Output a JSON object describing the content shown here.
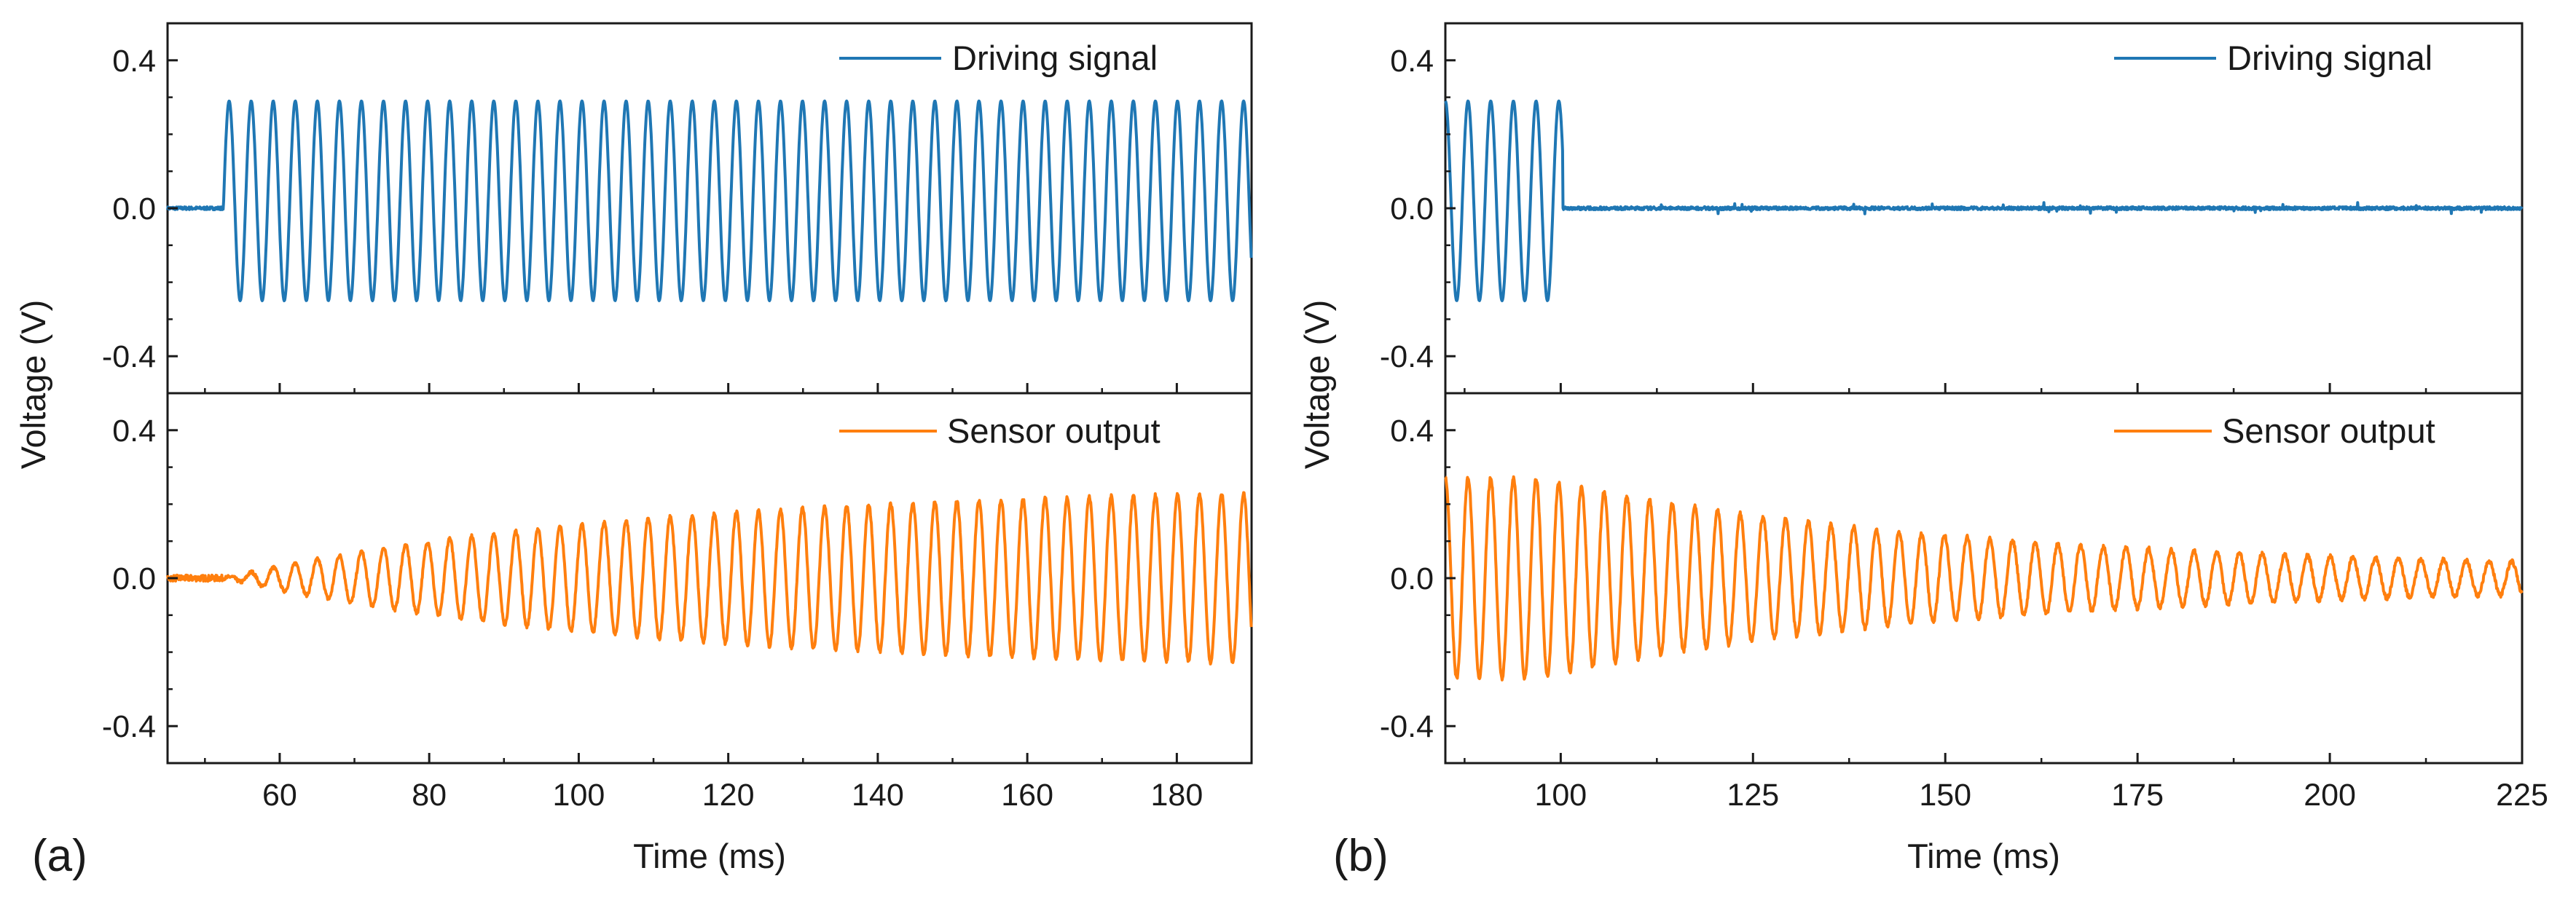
{
  "figure": {
    "panel_labels": [
      "(a)",
      "(b)"
    ],
    "colors": {
      "driving": "#1f77b4",
      "sensor": "#ff7f0e",
      "axis": "#1a1a1a"
    }
  },
  "chart_data": [
    {
      "type": "line",
      "panel": "(a)",
      "xlabel": "Time (ms)",
      "ylabel": "Voltage (V)",
      "xlim": [
        45,
        190
      ],
      "xticks": [
        60,
        80,
        100,
        120,
        140,
        160,
        180
      ],
      "xtick_labels": [
        "60",
        "80",
        "100",
        "120",
        "140",
        "160",
        "180"
      ],
      "subplots": [
        {
          "name": "top",
          "ylim": [
            -0.5,
            0.5
          ],
          "yticks": [
            0.4,
            0.0,
            -0.4
          ],
          "ytick_labels": [
            "0.4",
            "0.0",
            "-0.4"
          ],
          "series": [
            {
              "name": "Driving signal",
              "color": "#1f77b4",
              "legend_position": "top-right",
              "model": {
                "kind": "driving-on",
                "t_on": 52.5,
                "t_off": null,
                "period_ms": 2.95,
                "amplitude_pos": 0.29,
                "amplitude_neg": -0.25,
                "baseline_noise": 0.004
              }
            }
          ]
        },
        {
          "name": "bottom",
          "ylim": [
            -0.5,
            0.5
          ],
          "yticks": [
            0.4,
            0.0,
            -0.4
          ],
          "ytick_labels": [
            "0.4",
            "0.0",
            "-0.4"
          ],
          "series": [
            {
              "name": "Sensor output",
              "color": "#ff7f0e",
              "legend_position": "top-right",
              "model": {
                "kind": "rise",
                "t_on": 52.5,
                "period_ms": 2.95,
                "amplitude_max": 0.25,
                "tau_ms": 55,
                "noise": 0.012
              }
            }
          ]
        }
      ]
    },
    {
      "type": "line",
      "panel": "(b)",
      "xlabel": "Time (ms)",
      "ylabel": "Voltage (V)",
      "xlim": [
        85,
        225
      ],
      "xticks": [
        100,
        125,
        150,
        175,
        200,
        225
      ],
      "xtick_labels": [
        "100",
        "125",
        "150",
        "175",
        "200",
        "225"
      ],
      "subplots": [
        {
          "name": "top",
          "ylim": [
            -0.5,
            0.5
          ],
          "yticks": [
            0.4,
            0.0,
            -0.4
          ],
          "ytick_labels": [
            "0.4",
            "0.0",
            "-0.4"
          ],
          "series": [
            {
              "name": "Driving signal",
              "color": "#1f77b4",
              "legend_position": "top-right",
              "model": {
                "kind": "driving-off",
                "t_on": 85,
                "t_off": 100.3,
                "period_ms": 2.95,
                "amplitude_pos": 0.29,
                "amplitude_neg": -0.25,
                "baseline_noise": 0.004
              }
            }
          ]
        },
        {
          "name": "bottom",
          "ylim": [
            -0.5,
            0.5
          ],
          "yticks": [
            0.4,
            0.0,
            -0.4
          ],
          "ytick_labels": [
            "0.4",
            "0.0",
            "-0.4"
          ],
          "series": [
            {
              "name": "Sensor output",
              "color": "#ff7f0e",
              "legend_position": "top-right",
              "model": {
                "kind": "decay",
                "t_start": 85,
                "period_ms": 2.95,
                "amplitude_start": 0.27,
                "tau_ms": 55,
                "amplitude_floor": 0.02,
                "noise": 0.012
              }
            }
          ]
        }
      ]
    }
  ]
}
